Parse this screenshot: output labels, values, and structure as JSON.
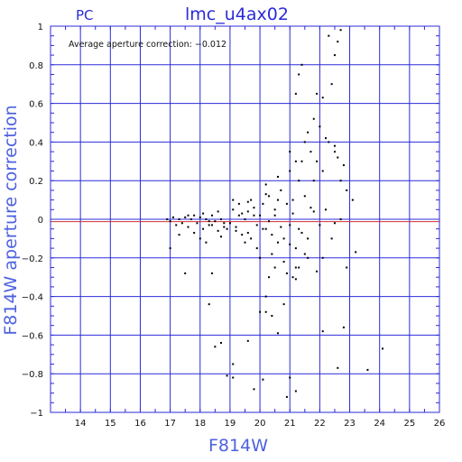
{
  "header": {
    "instrument": "PC",
    "title": "lmc_u4ax02"
  },
  "chart_data": {
    "type": "scatter",
    "title": "lmc_u4ax02",
    "xlabel": "F814W",
    "ylabel": "F814W aperture correction",
    "xlim": [
      13,
      26
    ],
    "ylim": [
      -1,
      1
    ],
    "xticks": [
      14,
      15,
      16,
      17,
      18,
      19,
      20,
      21,
      22,
      23,
      24,
      25,
      26
    ],
    "yticks": [
      1,
      0.8,
      0.6,
      0.4,
      0.2,
      0,
      -0.2,
      -0.4,
      -0.6,
      -0.8,
      -1
    ],
    "ytick_labels": [
      "1",
      "0.8",
      "0.6",
      "0.4",
      "0.2",
      "0",
      "−0.2",
      "−0.4",
      "−0.6",
      "−0.8",
      "−1"
    ],
    "grid": true,
    "annotation": "Average aperture correction: −0.012",
    "reference_lines": [
      {
        "y": 0,
        "color": "#2b2bd9"
      },
      {
        "y": -0.012,
        "color": "#d03030"
      }
    ],
    "colors": {
      "frame": "#2b2bd9",
      "grid": "#2b2bd9",
      "points": "#000000"
    },
    "points": [
      [
        16.9,
        0.0
      ],
      [
        17.0,
        -0.01
      ],
      [
        17.1,
        0.01
      ],
      [
        17.2,
        -0.03
      ],
      [
        17.3,
        0.0
      ],
      [
        17.4,
        -0.02
      ],
      [
        17.5,
        0.01
      ],
      [
        17.6,
        -0.04
      ],
      [
        17.7,
        0.0
      ],
      [
        17.8,
        0.02
      ],
      [
        17.9,
        -0.02
      ],
      [
        18.0,
        0.01
      ],
      [
        18.1,
        -0.05
      ],
      [
        18.2,
        0.0
      ],
      [
        18.3,
        -0.03
      ],
      [
        18.4,
        0.02
      ],
      [
        18.5,
        -0.01
      ],
      [
        18.6,
        -0.06
      ],
      [
        18.7,
        0.0
      ],
      [
        18.8,
        -0.02
      ],
      [
        17.0,
        -0.15
      ],
      [
        17.3,
        -0.08
      ],
      [
        17.6,
        0.02
      ],
      [
        17.8,
        -0.07
      ],
      [
        18.0,
        -0.1
      ],
      [
        18.2,
        -0.12
      ],
      [
        18.4,
        -0.03
      ],
      [
        18.7,
        -0.09
      ],
      [
        18.9,
        -0.05
      ],
      [
        19.0,
        -0.02
      ],
      [
        19.1,
        0.05
      ],
      [
        19.2,
        -0.04
      ],
      [
        19.3,
        0.02
      ],
      [
        19.4,
        -0.08
      ],
      [
        19.5,
        0.0
      ],
      [
        19.6,
        0.04
      ],
      [
        19.7,
        -0.1
      ],
      [
        19.8,
        0.06
      ],
      [
        19.9,
        -0.03
      ],
      [
        20.0,
        0.02
      ],
      [
        19.1,
        0.1
      ],
      [
        19.3,
        0.08
      ],
      [
        19.5,
        -0.12
      ],
      [
        19.7,
        0.1
      ],
      [
        19.9,
        -0.15
      ],
      [
        20.1,
        0.08
      ],
      [
        20.2,
        -0.05
      ],
      [
        20.3,
        0.12
      ],
      [
        20.4,
        -0.08
      ],
      [
        20.5,
        0.05
      ],
      [
        20.6,
        -0.12
      ],
      [
        20.7,
        0.15
      ],
      [
        20.8,
        -0.1
      ],
      [
        20.9,
        0.08
      ],
      [
        21.0,
        -0.03
      ],
      [
        21.1,
        0.1
      ],
      [
        21.2,
        -0.15
      ],
      [
        21.3,
        0.2
      ],
      [
        21.4,
        -0.07
      ],
      [
        21.5,
        0.12
      ],
      [
        20.0,
        -0.2
      ],
      [
        20.2,
        0.18
      ],
      [
        20.4,
        -0.18
      ],
      [
        20.6,
        0.22
      ],
      [
        20.8,
        -0.22
      ],
      [
        21.0,
        0.25
      ],
      [
        21.2,
        -0.25
      ],
      [
        21.4,
        0.3
      ],
      [
        21.6,
        -0.1
      ],
      [
        21.8,
        0.2
      ],
      [
        20.3,
        -0.3
      ],
      [
        20.5,
        -0.25
      ],
      [
        20.9,
        -0.28
      ],
      [
        21.1,
        -0.3
      ],
      [
        21.3,
        -0.25
      ],
      [
        21.6,
        -0.2
      ],
      [
        21.9,
        -0.27
      ],
      [
        22.1,
        -0.2
      ],
      [
        22.4,
        -0.1
      ],
      [
        22.7,
        0.0
      ],
      [
        21.0,
        0.35
      ],
      [
        21.2,
        0.3
      ],
      [
        21.5,
        0.4
      ],
      [
        21.7,
        0.35
      ],
      [
        21.9,
        0.3
      ],
      [
        22.1,
        0.25
      ],
      [
        22.3,
        0.4
      ],
      [
        22.5,
        0.35
      ],
      [
        22.7,
        0.2
      ],
      [
        22.9,
        0.15
      ],
      [
        21.2,
        0.65
      ],
      [
        21.3,
        0.75
      ],
      [
        21.4,
        0.8
      ],
      [
        21.9,
        0.65
      ],
      [
        22.1,
        0.63
      ],
      [
        22.3,
        0.95
      ],
      [
        22.5,
        0.85
      ],
      [
        22.6,
        0.92
      ],
      [
        22.7,
        0.98
      ],
      [
        22.4,
        0.7
      ],
      [
        21.8,
        0.52
      ],
      [
        22.0,
        0.48
      ],
      [
        21.6,
        0.45
      ],
      [
        22.2,
        0.42
      ],
      [
        22.5,
        0.38
      ],
      [
        22.6,
        0.32
      ],
      [
        22.8,
        0.28
      ],
      [
        23.1,
        0.1
      ],
      [
        23.2,
        -0.17
      ],
      [
        22.9,
        -0.25
      ],
      [
        18.3,
        -0.44
      ],
      [
        18.5,
        -0.66
      ],
      [
        18.7,
        -0.64
      ],
      [
        18.9,
        -0.81
      ],
      [
        19.1,
        -0.82
      ],
      [
        19.1,
        -0.75
      ],
      [
        19.6,
        -0.63
      ],
      [
        19.8,
        -0.88
      ],
      [
        20.0,
        -0.48
      ],
      [
        20.1,
        -0.83
      ],
      [
        20.2,
        -0.4
      ],
      [
        20.4,
        -0.5
      ],
      [
        20.6,
        -0.59
      ],
      [
        20.8,
        -0.44
      ],
      [
        20.9,
        -0.92
      ],
      [
        21.0,
        -0.82
      ],
      [
        21.2,
        -0.89
      ],
      [
        22.1,
        -0.58
      ],
      [
        22.6,
        -0.77
      ],
      [
        22.8,
        -0.56
      ],
      [
        23.6,
        -0.78
      ],
      [
        24.1,
        -0.67
      ],
      [
        21.2,
        -0.31
      ],
      [
        20.2,
        -0.48
      ],
      [
        18.4,
        -0.28
      ],
      [
        17.5,
        -0.28
      ],
      [
        19.6,
        0.09
      ],
      [
        20.3,
        -0.01
      ],
      [
        20.5,
        0.02
      ],
      [
        21.8,
        0.04
      ],
      [
        18.1,
        0.03
      ],
      [
        18.3,
        -0.01
      ],
      [
        18.6,
        0.04
      ],
      [
        18.8,
        -0.04
      ],
      [
        19.2,
        -0.06
      ],
      [
        19.4,
        0.03
      ],
      [
        19.6,
        -0.07
      ],
      [
        19.8,
        0.02
      ],
      [
        20.1,
        -0.05
      ],
      [
        20.7,
        -0.04
      ],
      [
        21.1,
        0.03
      ],
      [
        21.3,
        -0.05
      ],
      [
        21.7,
        0.06
      ],
      [
        22.0,
        -0.03
      ],
      [
        22.2,
        0.05
      ],
      [
        22.5,
        -0.02
      ],
      [
        21.5,
        -0.18
      ],
      [
        21.0,
        -0.13
      ],
      [
        20.6,
        0.1
      ],
      [
        20.2,
        0.13
      ]
    ]
  }
}
